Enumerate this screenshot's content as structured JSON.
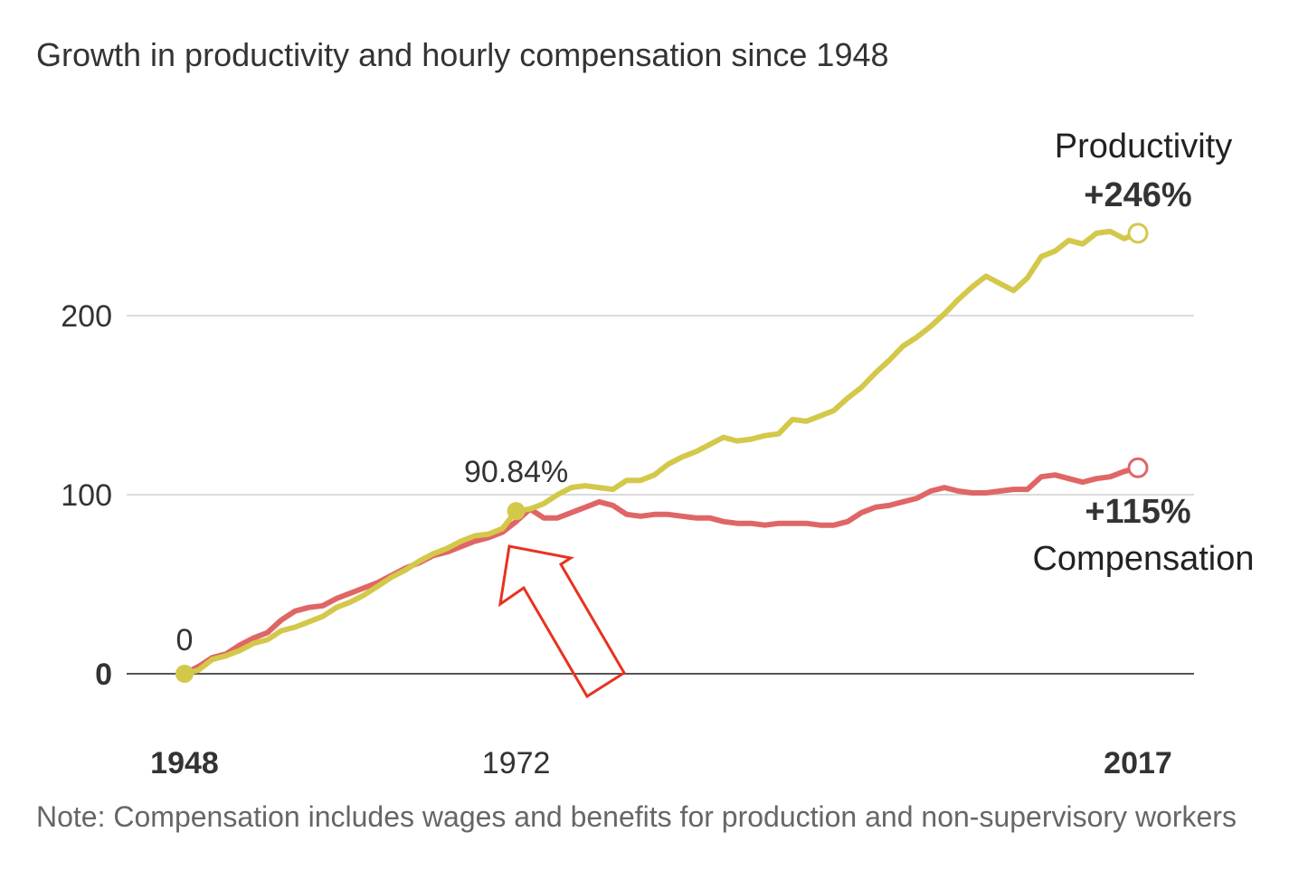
{
  "title": "Growth in productivity and hourly compensation since 1948",
  "note": "Note: Compensation includes wages and benefits for production and non-supervisory workers",
  "colors": {
    "productivity": "#d4c84a",
    "compensation": "#e06666",
    "arrow": "#e8321f"
  },
  "chart_data": {
    "type": "line",
    "title": "Growth in productivity and hourly compensation since 1948",
    "xlabel": "",
    "ylabel": "",
    "xlim": [
      1948,
      2017
    ],
    "ylim": [
      0,
      260
    ],
    "grid": true,
    "x_ticks": [
      {
        "label": "1948",
        "value": 1948,
        "bold": true
      },
      {
        "label": "1972",
        "value": 1972,
        "bold": false
      },
      {
        "label": "2017",
        "value": 2017,
        "bold": true
      }
    ],
    "y_ticks": [
      {
        "label": "0",
        "value": 0,
        "bold": true
      },
      {
        "label": "100",
        "value": 100,
        "bold": false
      },
      {
        "label": "200",
        "value": 200,
        "bold": false
      }
    ],
    "series": [
      {
        "name": "Productivity",
        "end_label": "+246%",
        "x": [
          1948,
          1949,
          1950,
          1951,
          1952,
          1953,
          1954,
          1955,
          1956,
          1957,
          1958,
          1959,
          1960,
          1961,
          1962,
          1963,
          1964,
          1965,
          1966,
          1967,
          1968,
          1969,
          1970,
          1971,
          1972,
          1973,
          1974,
          1975,
          1976,
          1977,
          1978,
          1979,
          1980,
          1981,
          1982,
          1983,
          1984,
          1985,
          1986,
          1987,
          1988,
          1989,
          1990,
          1991,
          1992,
          1993,
          1994,
          1995,
          1996,
          1997,
          1998,
          1999,
          2000,
          2001,
          2002,
          2003,
          2004,
          2005,
          2006,
          2007,
          2008,
          2009,
          2010,
          2011,
          2012,
          2013,
          2014,
          2015,
          2016,
          2017
        ],
        "values": [
          0,
          2,
          8,
          10,
          13,
          17,
          19,
          24,
          26,
          29,
          32,
          37,
          40,
          44,
          49,
          54,
          58,
          63,
          67,
          70,
          74,
          77,
          78,
          81,
          90.84,
          92,
          95,
          100,
          104,
          105,
          104,
          103,
          108,
          108,
          111,
          117,
          121,
          124,
          128,
          132,
          130,
          131,
          133,
          134,
          142,
          141,
          144,
          147,
          154,
          160,
          168,
          175,
          183,
          188,
          194,
          201,
          209,
          216,
          222,
          218,
          214,
          221,
          233,
          236,
          242,
          240,
          246,
          247,
          243,
          246
        ]
      },
      {
        "name": "Compensation",
        "end_label": "+115%",
        "x": [
          1948,
          1949,
          1950,
          1951,
          1952,
          1953,
          1954,
          1955,
          1956,
          1957,
          1958,
          1959,
          1960,
          1961,
          1962,
          1963,
          1964,
          1965,
          1966,
          1967,
          1968,
          1969,
          1970,
          1971,
          1972,
          1973,
          1974,
          1975,
          1976,
          1977,
          1978,
          1979,
          1980,
          1981,
          1982,
          1983,
          1984,
          1985,
          1986,
          1987,
          1988,
          1989,
          1990,
          1991,
          1992,
          1993,
          1994,
          1995,
          1996,
          1997,
          1998,
          1999,
          2000,
          2001,
          2002,
          2003,
          2004,
          2005,
          2006,
          2007,
          2008,
          2009,
          2010,
          2011,
          2012,
          2013,
          2014,
          2015,
          2016,
          2017
        ],
        "values": [
          0,
          4,
          9,
          11,
          16,
          20,
          23,
          30,
          35,
          37,
          38,
          42,
          45,
          48,
          51,
          55,
          59,
          62,
          66,
          68,
          71,
          74,
          76,
          79,
          85,
          92,
          87,
          87,
          90,
          93,
          96,
          94,
          89,
          88,
          89,
          89,
          88,
          87,
          87,
          85,
          84,
          84,
          83,
          84,
          84,
          84,
          83,
          83,
          85,
          90,
          93,
          94,
          96,
          98,
          102,
          104,
          102,
          101,
          101,
          102,
          103,
          103,
          110,
          111,
          109,
          107,
          109,
          110,
          113,
          115
        ]
      }
    ],
    "annotations": [
      {
        "text": "0",
        "x": 1948,
        "y": 0
      },
      {
        "text": "90.84%",
        "x": 1972,
        "y": 90.84
      }
    ]
  }
}
